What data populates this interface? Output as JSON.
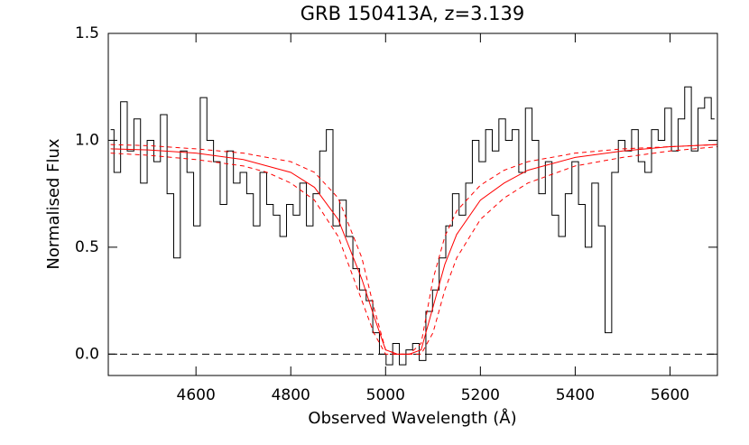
{
  "chart_data": {
    "type": "line",
    "title": "GRB 150413A, z=3.139",
    "x_label": "Observed Wavelength (Å)",
    "y_label": "Normalised Flux",
    "xlim": [
      4415,
      5700
    ],
    "ylim": [
      -0.1,
      1.5
    ],
    "xticks": [
      4600,
      4800,
      5000,
      5200,
      5400,
      5600
    ],
    "yticks": [
      {
        "value": 0,
        "label": "0.0"
      },
      0.5,
      {
        "value": 1,
        "label": "1.0"
      },
      1.5
    ],
    "hlines": [
      0
    ],
    "hline_color": "#000000",
    "series": [
      {
        "style": "step",
        "color": "#000000",
        "x": [
          4420,
          4434,
          4448,
          4462,
          4476,
          4490,
          4504,
          4518,
          4532,
          4546,
          4560,
          4574,
          4588,
          4602,
          4616,
          4630,
          4644,
          4658,
          4672,
          4686,
          4700,
          4714,
          4728,
          4742,
          4756,
          4770,
          4784,
          4798,
          4812,
          4826,
          4840,
          4854,
          4868,
          4882,
          4896,
          4910,
          4924,
          4938,
          4952,
          4966,
          4980,
          4994,
          5008,
          5022,
          5036,
          5050,
          5064,
          5078,
          5092,
          5106,
          5120,
          5134,
          5148,
          5162,
          5176,
          5190,
          5204,
          5218,
          5232,
          5246,
          5260,
          5274,
          5288,
          5302,
          5316,
          5330,
          5344,
          5358,
          5372,
          5386,
          5400,
          5414,
          5428,
          5442,
          5456,
          5470,
          5484,
          5498,
          5512,
          5526,
          5540,
          5554,
          5568,
          5582,
          5596,
          5610,
          5624,
          5638,
          5652,
          5666,
          5680,
          5694
        ],
        "values": [
          1.05,
          0.85,
          1.18,
          0.95,
          1.1,
          0.8,
          1.0,
          0.9,
          1.12,
          0.75,
          0.45,
          0.95,
          0.85,
          0.6,
          1.2,
          1.0,
          0.9,
          0.7,
          0.95,
          0.8,
          0.85,
          0.75,
          0.6,
          0.85,
          0.7,
          0.65,
          0.55,
          0.7,
          0.65,
          0.8,
          0.6,
          0.75,
          0.95,
          1.05,
          0.6,
          0.72,
          0.55,
          0.4,
          0.3,
          0.25,
          0.1,
          0,
          -0.05,
          0.05,
          -0.05,
          0.02,
          0.05,
          -0.03,
          0.2,
          0.3,
          0.45,
          0.6,
          0.75,
          0.65,
          0.8,
          1.0,
          0.9,
          1.05,
          0.95,
          1.1,
          1.0,
          1.05,
          0.85,
          1.15,
          1.0,
          0.75,
          0.9,
          0.65,
          0.55,
          0.75,
          0.9,
          0.7,
          0.5,
          0.8,
          0.6,
          0.1,
          0.85,
          1.0,
          0.95,
          1.05,
          0.9,
          0.85,
          1.05,
          1.0,
          1.15,
          0.95,
          1.1,
          1.25,
          0.95,
          1.15,
          1.2,
          1.1
        ]
      },
      {
        "style": "solid",
        "color": "#ff0000",
        "x": [
          4420,
          4500,
          4600,
          4700,
          4750,
          4800,
          4850,
          4900,
          4950,
          4975,
          5000,
          5025,
          5050,
          5075,
          5100,
          5125,
          5150,
          5200,
          5250,
          5300,
          5400,
          5500,
          5600,
          5700
        ],
        "values": [
          0.96,
          0.955,
          0.94,
          0.91,
          0.88,
          0.85,
          0.78,
          0.63,
          0.35,
          0.18,
          0.02,
          0,
          0,
          0.02,
          0.22,
          0.42,
          0.56,
          0.72,
          0.8,
          0.86,
          0.92,
          0.95,
          0.97,
          0.98
        ]
      },
      {
        "style": "dashed",
        "color": "#ff0000",
        "x": [
          4420,
          4500,
          4600,
          4700,
          4750,
          4800,
          4850,
          4900,
          4950,
          4975,
          5000,
          5025,
          5050,
          5075,
          5100,
          5125,
          5150,
          5200,
          5250,
          5300,
          5400,
          5500,
          5600,
          5700
        ],
        "values": [
          0.98,
          0.975,
          0.96,
          0.94,
          0.92,
          0.9,
          0.85,
          0.73,
          0.45,
          0.22,
          0.02,
          0,
          0,
          0.05,
          0.35,
          0.55,
          0.67,
          0.79,
          0.86,
          0.9,
          0.94,
          0.96,
          0.97,
          0.98
        ]
      },
      {
        "style": "dashed",
        "color": "#ff0000",
        "x": [
          4420,
          4500,
          4600,
          4700,
          4750,
          4800,
          4850,
          4900,
          4950,
          4975,
          5000,
          5025,
          5050,
          5075,
          5100,
          5125,
          5150,
          5200,
          5250,
          5300,
          5400,
          5500,
          5600,
          5700
        ],
        "values": [
          0.94,
          0.93,
          0.91,
          0.88,
          0.85,
          0.8,
          0.72,
          0.55,
          0.25,
          0.1,
          0,
          0,
          0,
          0,
          0.1,
          0.3,
          0.45,
          0.63,
          0.73,
          0.8,
          0.88,
          0.92,
          0.95,
          0.97
        ]
      }
    ]
  }
}
